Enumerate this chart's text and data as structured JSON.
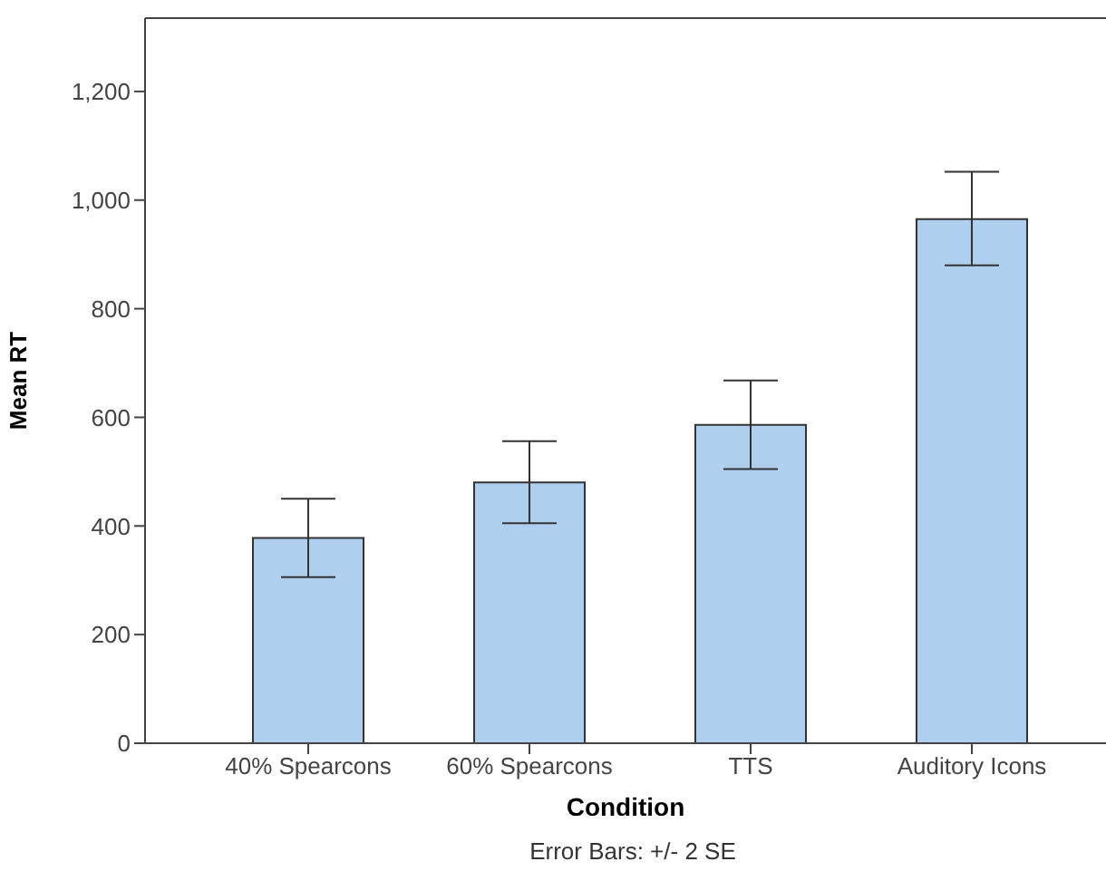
{
  "chart_data": {
    "type": "bar",
    "xlabel": "Condition",
    "ylabel": "Mean RT",
    "annotations": [
      "Error Bars: +/- 2 SE"
    ],
    "categories": [
      "40% Spearcons",
      "60% Spearcons",
      "TTS",
      "Auditory Icons"
    ],
    "values": [
      378,
      480,
      586,
      965
    ],
    "color": "#aecfee",
    "errors": [
      [
        306,
        450
      ],
      [
        405,
        556
      ],
      [
        505,
        668
      ],
      [
        880,
        1052
      ]
    ],
    "ylim": [
      0,
      1335
    ],
    "yticks": [
      0,
      200,
      400,
      600,
      800,
      {
        "value": 1000,
        "label": "1,000"
      },
      {
        "value": 1200,
        "label": "1,200"
      }
    ]
  }
}
